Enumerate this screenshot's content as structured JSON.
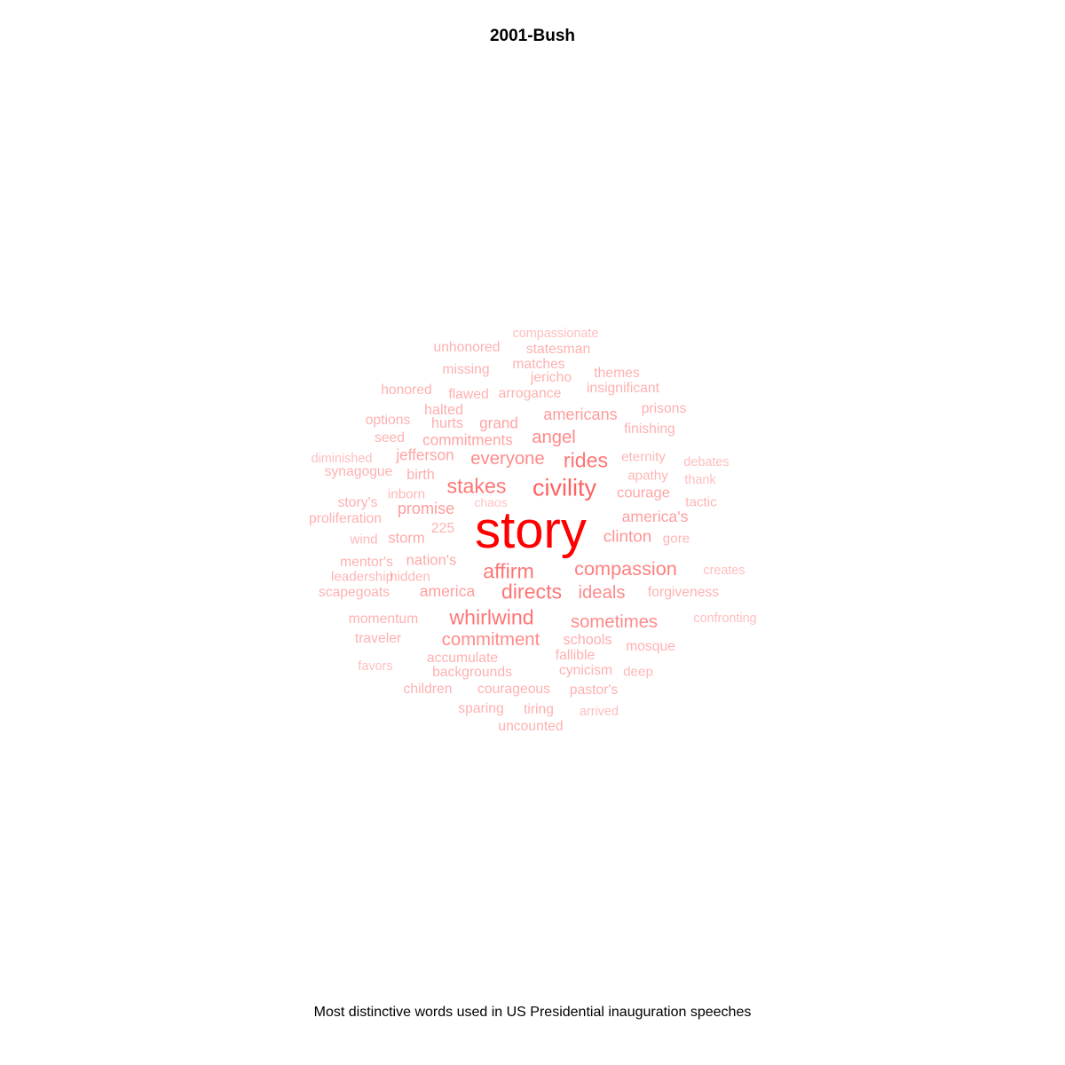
{
  "chart_data": {
    "type": "wordcloud",
    "title": "2001-Bush",
    "caption": "Most distinctive words used in US Presidential inauguration speeches",
    "base_color": "#ff0000",
    "words": [
      {
        "text": "story",
        "weight": 1.0
      },
      {
        "text": "civility",
        "weight": 0.62
      },
      {
        "text": "stakes",
        "weight": 0.5
      },
      {
        "text": "rides",
        "weight": 0.5
      },
      {
        "text": "affirm",
        "weight": 0.5
      },
      {
        "text": "whirlwind",
        "weight": 0.5
      },
      {
        "text": "directs",
        "weight": 0.5
      },
      {
        "text": "compassion",
        "weight": 0.45
      },
      {
        "text": "angel",
        "weight": 0.4
      },
      {
        "text": "everyone",
        "weight": 0.4
      },
      {
        "text": "commitment",
        "weight": 0.4
      },
      {
        "text": "sometimes",
        "weight": 0.4
      },
      {
        "text": "ideals",
        "weight": 0.4
      },
      {
        "text": "clinton",
        "weight": 0.35
      },
      {
        "text": "americans",
        "weight": 0.32
      },
      {
        "text": "promise",
        "weight": 0.32
      },
      {
        "text": "america's",
        "weight": 0.3
      },
      {
        "text": "america",
        "weight": 0.3
      },
      {
        "text": "commitments",
        "weight": 0.28
      },
      {
        "text": "grand",
        "weight": 0.28
      },
      {
        "text": "jefferson",
        "weight": 0.28
      },
      {
        "text": "courage",
        "weight": 0.26
      },
      {
        "text": "storm",
        "weight": 0.26
      },
      {
        "text": "nation's",
        "weight": 0.26
      },
      {
        "text": "schools",
        "weight": 0.24
      },
      {
        "text": "birth",
        "weight": 0.24
      },
      {
        "text": "hurts",
        "weight": 0.24
      },
      {
        "text": "halted",
        "weight": 0.24
      },
      {
        "text": "insignificant",
        "weight": 0.22
      },
      {
        "text": "statesman",
        "weight": 0.22
      },
      {
        "text": "unhonored",
        "weight": 0.22
      },
      {
        "text": "matches",
        "weight": 0.22
      },
      {
        "text": "missing",
        "weight": 0.22
      },
      {
        "text": "themes",
        "weight": 0.22
      },
      {
        "text": "jericho",
        "weight": 0.22
      },
      {
        "text": "honored",
        "weight": 0.22
      },
      {
        "text": "flawed",
        "weight": 0.22
      },
      {
        "text": "arrogance",
        "weight": 0.22
      },
      {
        "text": "prisons",
        "weight": 0.22
      },
      {
        "text": "options",
        "weight": 0.22
      },
      {
        "text": "finishing",
        "weight": 0.22
      },
      {
        "text": "seed",
        "weight": 0.22
      },
      {
        "text": "eternity",
        "weight": 0.2
      },
      {
        "text": "synagogue",
        "weight": 0.22
      },
      {
        "text": "apathy",
        "weight": 0.2
      },
      {
        "text": "inborn",
        "weight": 0.2
      },
      {
        "text": "story's",
        "weight": 0.22
      },
      {
        "text": "tactic",
        "weight": 0.2
      },
      {
        "text": "proliferation",
        "weight": 0.22
      },
      {
        "text": "225",
        "weight": 0.22
      },
      {
        "text": "wind",
        "weight": 0.2
      },
      {
        "text": "gore",
        "weight": 0.2
      },
      {
        "text": "mentor's",
        "weight": 0.22
      },
      {
        "text": "leadership",
        "weight": 0.2
      },
      {
        "text": "hidden",
        "weight": 0.2
      },
      {
        "text": "scapegoats",
        "weight": 0.22
      },
      {
        "text": "forgiveness",
        "weight": 0.22
      },
      {
        "text": "momentum",
        "weight": 0.22
      },
      {
        "text": "traveler",
        "weight": 0.22
      },
      {
        "text": "mosque",
        "weight": 0.22
      },
      {
        "text": "accumulate",
        "weight": 0.22
      },
      {
        "text": "fallible",
        "weight": 0.22
      },
      {
        "text": "backgrounds",
        "weight": 0.22
      },
      {
        "text": "cynicism",
        "weight": 0.22
      },
      {
        "text": "deep",
        "weight": 0.2
      },
      {
        "text": "children",
        "weight": 0.22
      },
      {
        "text": "courageous",
        "weight": 0.22
      },
      {
        "text": "pastor's",
        "weight": 0.22
      },
      {
        "text": "sparing",
        "weight": 0.22
      },
      {
        "text": "tiring",
        "weight": 0.22
      },
      {
        "text": "uncounted",
        "weight": 0.22
      },
      {
        "text": "compassionate",
        "weight": 0.16
      },
      {
        "text": "diminished",
        "weight": 0.16
      },
      {
        "text": "debates",
        "weight": 0.16
      },
      {
        "text": "thank",
        "weight": 0.16
      },
      {
        "text": "chaos",
        "weight": 0.14
      },
      {
        "text": "creates",
        "weight": 0.16
      },
      {
        "text": "confronting",
        "weight": 0.16
      },
      {
        "text": "favors",
        "weight": 0.16
      },
      {
        "text": "arrived",
        "weight": 0.16
      }
    ]
  }
}
